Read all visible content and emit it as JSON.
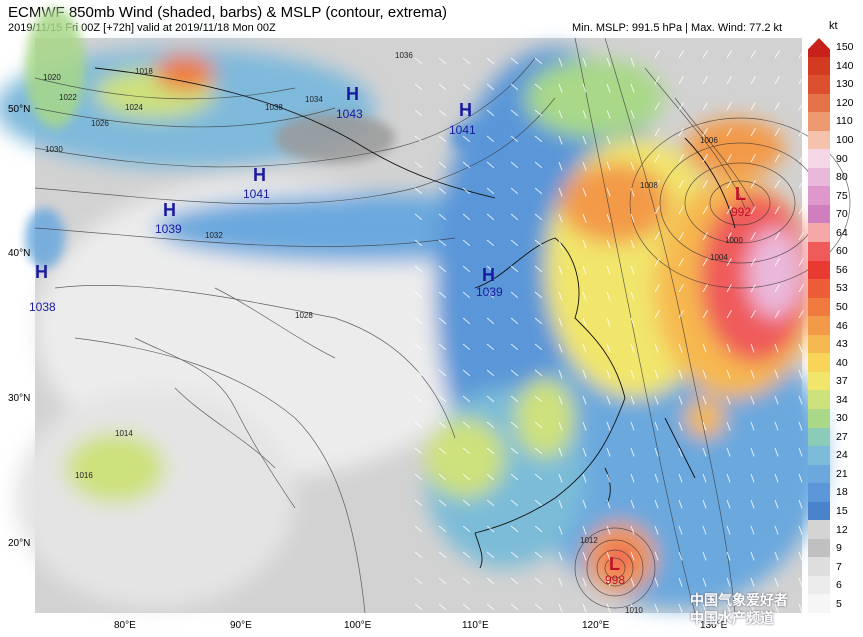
{
  "header": {
    "title": "ECMWF 850mb Wind (shaded, barbs) & MSLP (contour, extrema)",
    "subtitle": "2019/11/15 Fri 00Z [+72h] valid at 2019/11/18 Mon 00Z",
    "stats": "Min. MSLP: 991.5 hPa | Max. Wind: 77.2 kt"
  },
  "colorbar": {
    "unit": "kt",
    "levels": [
      "150",
      "140",
      "130",
      "120",
      "110",
      "100",
      "90",
      "80",
      "75",
      "70",
      "64",
      "60",
      "56",
      "53",
      "50",
      "46",
      "43",
      "40",
      "37",
      "34",
      "30",
      "27",
      "24",
      "21",
      "18",
      "15",
      "12",
      "9",
      "7",
      "6",
      "5"
    ],
    "colors": [
      "#c8201a",
      "#d23a22",
      "#dc5030",
      "#e4734a",
      "#ee9a70",
      "#f5c2ae",
      "#f4d6e6",
      "#eab8da",
      "#de98cc",
      "#cf7fbd",
      "#f5a8a8",
      "#ef5a5a",
      "#e83a30",
      "#ec5c36",
      "#f07a3e",
      "#f39a48",
      "#f6b850",
      "#f8d458",
      "#f1e56c",
      "#cde17c",
      "#a8d888",
      "#8ccbb8",
      "#7cbcd8",
      "#6aa8de",
      "#5a96d8",
      "#4a82cc",
      "#d4d4d4",
      "#c0c0c0",
      "#dedede",
      "#ececec",
      "#f6f6f6"
    ]
  },
  "axes": {
    "lat_labels": [
      "50°N",
      "40°N",
      "30°N",
      "20°N"
    ],
    "lon_labels": [
      "80°E",
      "90°E",
      "100°E",
      "110°E",
      "120°E",
      "130°E"
    ]
  },
  "pressure_centers": [
    {
      "type": "H",
      "value": "1043",
      "name": "high-1043",
      "color": "#1a1aa0"
    },
    {
      "type": "H",
      "value": "1041",
      "name": "high-1041-north",
      "color": "#1a1aa0"
    },
    {
      "type": "H",
      "value": "1041",
      "name": "high-1041-west",
      "color": "#1a1aa0"
    },
    {
      "type": "H",
      "value": "1039",
      "name": "high-1039-west",
      "color": "#1a1aa0"
    },
    {
      "type": "H",
      "value": "1038",
      "name": "high-1038-edge",
      "color": "#1a1aa0"
    },
    {
      "type": "H",
      "value": "1039",
      "name": "high-1039-east",
      "color": "#1a1aa0"
    },
    {
      "type": "L",
      "value": "992",
      "name": "low-992",
      "color": "#c0102a"
    },
    {
      "type": "L",
      "value": "998",
      "name": "low-998",
      "color": "#c0102a"
    }
  ],
  "isobar_labels": [
    "1020",
    "1018",
    "1022",
    "1026",
    "1024",
    "1030",
    "1036",
    "1038",
    "1034",
    "1032",
    "1028",
    "1012",
    "1016",
    "1014",
    "1008",
    "1004",
    "1000",
    "1006",
    "1010"
  ],
  "watermark": {
    "line1": "中国气象爱好者",
    "line2": "中国水产频道"
  }
}
